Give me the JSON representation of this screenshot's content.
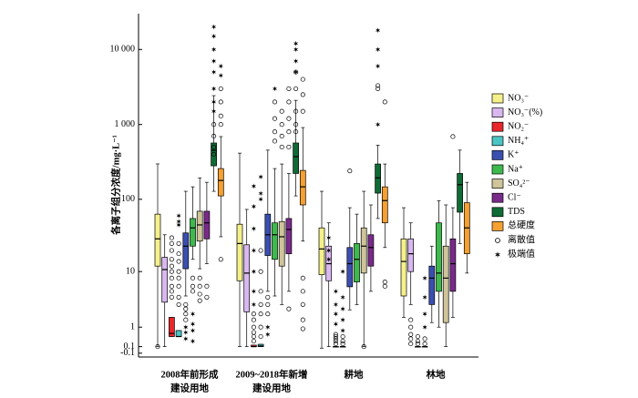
{
  "chart_data": {
    "type": "box",
    "ylabel": "各离子组分浓度/mg·L⁻¹",
    "yscale": "log1p",
    "ylim": [
      -0.2,
      30000
    ],
    "yticks": [
      {
        "value": 10000,
        "label": "10 000"
      },
      {
        "value": 1000,
        "label": "1 000"
      },
      100,
      10,
      1,
      0.1,
      -0.1
    ],
    "categories": [
      [
        "2008年前形成",
        "建设用地"
      ],
      [
        "2009~2018年新增",
        "建设用地"
      ],
      [
        "耕地"
      ],
      [
        "林地"
      ]
    ],
    "legend": {
      "position": "right",
      "outlier": "离散值",
      "extreme": "极端值"
    },
    "series": [
      {
        "name": "NO₃⁻",
        "color": "#f5f08a",
        "boxes": [
          {
            "whislo": 0.1,
            "q1": 12,
            "med": 29,
            "q3": 63,
            "whishi": 298,
            "outliers": [
              0.1
            ],
            "extremes": []
          },
          {
            "whislo": 0.1,
            "q1": 7.3,
            "med": 25,
            "q3": 46,
            "whishi": 415,
            "outliers": [],
            "extremes": []
          },
          {
            "whislo": 0.05,
            "q1": 9,
            "med": 21,
            "q3": 41,
            "whishi": 128,
            "outliers": [],
            "extremes": []
          },
          {
            "whislo": 1.7,
            "q1": 4.2,
            "med": 14,
            "q3": 29,
            "whishi": 77,
            "outliers": [],
            "extremes": []
          }
        ]
      },
      {
        "name": "NO₃⁻(%)",
        "color": "#d9b8f0",
        "boxes": [
          {
            "whislo": 0.1,
            "q1": 3.3,
            "med": 10.7,
            "q3": 16,
            "whishi": 33,
            "outliers": [],
            "extremes": []
          },
          {
            "whislo": 0.1,
            "q1": 2.2,
            "med": 9.5,
            "q3": 24,
            "whishi": 73,
            "outliers": [],
            "extremes": []
          },
          {
            "whislo": 0.1,
            "q1": 7.3,
            "med": 13,
            "q3": 23,
            "whishi": 48,
            "outliers": [],
            "extremes": [
              30,
              20,
              15
            ]
          },
          {
            "whislo": 3,
            "q1": 10,
            "med": 18,
            "q3": 29,
            "whishi": 48,
            "outliers": [
              1.5,
              1,
              0.6,
              0.4,
              0.2
            ],
            "extremes": []
          }
        ]
      },
      {
        "name": "NO₂⁻",
        "color": "#e8262b",
        "boxes": [
          {
            "whislo": 0.5,
            "q1": 0.5,
            "med": 0.65,
            "q3": 1.7,
            "whishi": 1.7,
            "outliers": [
              30,
              25,
              20,
              15,
              12,
              10,
              8,
              6,
              5,
              4
            ],
            "extremes": []
          },
          {
            "whislo": 0.1,
            "q1": 0.1,
            "med": 0.1,
            "q3": 0.15,
            "whishi": 0.15,
            "outliers": [
              2,
              1.5,
              1,
              0.7,
              0.5,
              0.3
            ],
            "extremes": [
              150,
              80,
              40,
              20,
              10,
              5,
              3
            ]
          },
          {
            "whislo": 0.1,
            "q1": 0.1,
            "med": 0.1,
            "q3": 0.1,
            "whishi": 0.1,
            "outliers": [
              0.6,
              0.5,
              0.4,
              0.3,
              0.2
            ],
            "extremes": [
              5,
              3,
              2,
              1.2
            ]
          },
          {
            "whislo": 0.1,
            "q1": 0.1,
            "med": 0.1,
            "q3": 0.1,
            "whishi": 0.1,
            "outliers": [
              0.5,
              0.3,
              0.2
            ],
            "extremes": []
          }
        ]
      },
      {
        "name": "NH₄⁺",
        "color": "#4bc4c4",
        "boxes": [
          {
            "whislo": 0.5,
            "q1": 0.5,
            "med": 0.5,
            "q3": 0.8,
            "whishi": 0.8,
            "outliers": [
              25,
              18,
              14,
              10,
              8,
              6,
              4,
              3
            ],
            "extremes": [
              60,
              50,
              45
            ]
          },
          {
            "whislo": 0.1,
            "q1": 0.1,
            "med": 0.12,
            "q3": 0.18,
            "whishi": 0.18,
            "outliers": [
              20,
              10,
              5,
              3,
              2,
              1,
              0.5
            ],
            "extremes": [
              200,
              120,
              100
            ]
          },
          {
            "whislo": 0.1,
            "q1": 0.1,
            "med": 0.1,
            "q3": 0.1,
            "whishi": 0.1,
            "outliers": [
              0.5,
              0.3,
              0.2
            ],
            "extremes": [
              10,
              4,
              2.5,
              1.5,
              0.8
            ]
          },
          {
            "whislo": 0.1,
            "q1": 0.1,
            "med": 0.1,
            "q3": 0.1,
            "whishi": 0.1,
            "outliers": [
              0.4,
              0.2
            ],
            "extremes": [
              8,
              4,
              2,
              1
            ]
          }
        ]
      },
      {
        "name": "K⁺",
        "color": "#3a4fb0",
        "boxes": [
          {
            "whislo": 4.2,
            "q1": 11,
            "med": 23,
            "q3": 35,
            "whishi": 128,
            "outliers": [
              3,
              2.5,
              2,
              1.5
            ],
            "extremes": [
              1,
              0.7,
              0.4
            ]
          },
          {
            "whislo": 5,
            "q1": 17,
            "med": 33,
            "q3": 63,
            "whishi": 455,
            "outliers": [
              4,
              3,
              2
            ],
            "extremes": [
              1,
              0.6
            ]
          },
          {
            "whislo": 2.4,
            "q1": 5.9,
            "med": 13,
            "q3": 22,
            "whishi": 77,
            "outliers": [
              240
            ],
            "extremes": []
          },
          {
            "whislo": 1.3,
            "q1": 3,
            "med": 8,
            "q3": 12,
            "whishi": 23,
            "outliers": [],
            "extremes": []
          }
        ]
      },
      {
        "name": "Na⁺",
        "color": "#3cba4c",
        "boxes": [
          {
            "whislo": 15,
            "q1": 23,
            "med": 41,
            "q3": 55,
            "whishi": 147,
            "outliers": [
              8,
              6,
              5
            ],
            "extremes": [
              2,
              1.2,
              0.8,
              0.3
            ]
          },
          {
            "whislo": 4.2,
            "q1": 15,
            "med": 33,
            "q3": 48,
            "whishi": 258,
            "outliers": [
              2000,
              1200,
              800,
              600
            ],
            "extremes": [
              3000
            ]
          },
          {
            "whislo": 3,
            "q1": 7,
            "med": 15,
            "q3": 25,
            "whishi": 63,
            "outliers": [],
            "extremes": []
          },
          {
            "whislo": 1,
            "q1": 5,
            "med": 9.5,
            "q3": 48,
            "whishi": 96,
            "outliers": [],
            "extremes": []
          }
        ]
      },
      {
        "name": "SO₄²⁻",
        "color": "#cfc49a",
        "boxes": [
          {
            "whislo": 11,
            "q1": 27,
            "med": 45,
            "q3": 69,
            "whishi": 194,
            "outliers": [
              8,
              6,
              4.5,
              3.5
            ],
            "extremes": []
          },
          {
            "whislo": 3,
            "q1": 12,
            "med": 31,
            "q3": 50,
            "whishi": 297,
            "outliers": [
              1500,
              1000,
              700,
              500
            ],
            "extremes": []
          },
          {
            "whislo": 0.1,
            "q1": 9.5,
            "med": 23,
            "q3": 41,
            "whishi": 128,
            "outliers": [
              0.1
            ],
            "extremes": []
          },
          {
            "whislo": 0.1,
            "q1": 1.3,
            "med": 8,
            "q3": 23,
            "whishi": 84,
            "outliers": [],
            "extremes": []
          }
        ]
      },
      {
        "name": "Cl⁻",
        "color": "#7a2a8a",
        "boxes": [
          {
            "whislo": 13,
            "q1": 29,
            "med": 48,
            "q3": 69,
            "whishi": 169,
            "outliers": [
              6,
              4
            ],
            "extremes": []
          },
          {
            "whislo": 5,
            "q1": 18,
            "med": 39,
            "q3": 55,
            "whishi": 222,
            "outliers": [
              3000,
              2000,
              1200,
              800,
              500,
              2.5
            ],
            "extremes": []
          },
          {
            "whislo": 5,
            "q1": 12,
            "med": 22,
            "q3": 33,
            "whishi": 84,
            "outliers": [],
            "extremes": []
          },
          {
            "whislo": 1.7,
            "q1": 5,
            "med": 13,
            "q3": 29,
            "whishi": 77,
            "outliers": [
              690
            ],
            "extremes": []
          }
        ]
      },
      {
        "name": "TDS",
        "color": "#0f6b35",
        "boxes": [
          {
            "whislo": 128,
            "q1": 281,
            "med": 453,
            "q3": 567,
            "whishi": 2426,
            "outliers": [
              1000,
              700,
              500,
              400
            ],
            "extremes": [
              20000,
              15000,
              10000,
              7000,
              5000,
              3000,
              2000,
              1500
            ]
          },
          {
            "whislo": 111,
            "q1": 222,
            "med": 372,
            "q3": 567,
            "whishi": 2100,
            "outliers": [
              5000,
              3000,
              1500,
              1000,
              800
            ],
            "extremes": [
              12000,
              10000,
              7000,
              5000
            ]
          },
          {
            "whislo": 55,
            "q1": 121,
            "med": 194,
            "q3": 297,
            "whishi": 530,
            "outliers": [
              3300,
              3000
            ],
            "extremes": [
              18000,
              10000,
              6000,
              1000
            ]
          },
          {
            "whislo": 25,
            "q1": 67,
            "med": 157,
            "q3": 222,
            "whishi": 455,
            "outliers": [],
            "extremes": []
          }
        ]
      },
      {
        "name": "总硬度",
        "color": "#f5a030",
        "boxes": [
          {
            "whislo": 31,
            "q1": 111,
            "med": 179,
            "q3": 258,
            "whishi": 690,
            "outliers": [
              3000,
              2000,
              1300,
              1000,
              15
            ],
            "extremes": [
              6000,
              4500
            ]
          },
          {
            "whislo": 27,
            "q1": 84,
            "med": 147,
            "q3": 244,
            "whishi": 910,
            "outliers": [
              4000,
              2500,
              1500,
              8,
              5,
              3,
              1.5,
              0.9
            ],
            "extremes": []
          },
          {
            "whislo": 22,
            "q1": 48,
            "med": 96,
            "q3": 147,
            "whishi": 297,
            "outliers": [
              2000,
              7,
              6
            ],
            "extremes": []
          },
          {
            "whislo": 9.5,
            "q1": 18,
            "med": 41,
            "q3": 90,
            "whishi": 169,
            "outliers": [],
            "extremes": []
          }
        ]
      }
    ]
  }
}
